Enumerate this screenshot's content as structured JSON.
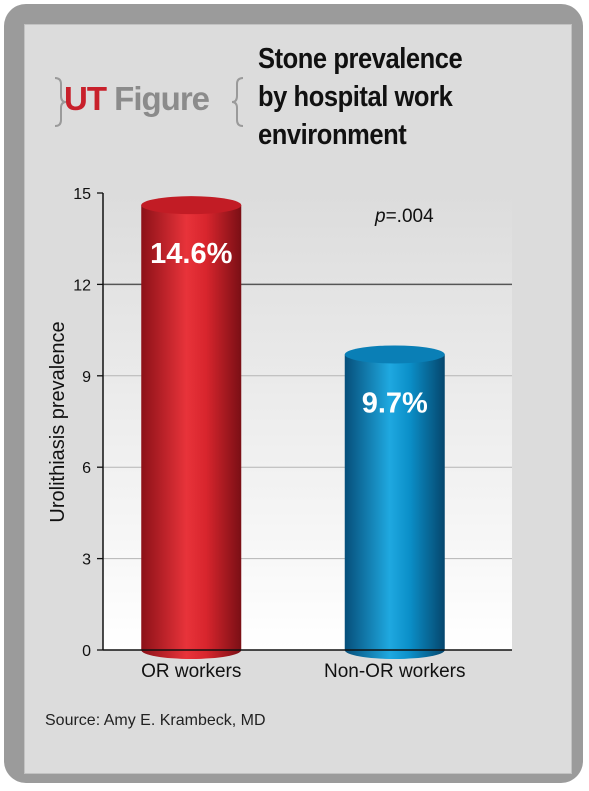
{
  "brand": {
    "prefix": "UT",
    "word": "Figure"
  },
  "title_lines": [
    "Stone prevalence",
    "by hospital work",
    "environment"
  ],
  "source": "Source: Amy E. Krambeck, MD",
  "colors": {
    "or_bar": "#c8202b",
    "non_or_bar": "#0b82b8",
    "brand_red": "#c8202b",
    "brand_gray": "#8b8b8b"
  },
  "chart_data": {
    "type": "bar",
    "title": "Stone prevalence by hospital work environment",
    "ylabel": "Urolithiasis prevalence",
    "xlabel": "",
    "ylim": [
      0,
      15
    ],
    "yticks": [
      0,
      3,
      6,
      9,
      12,
      15
    ],
    "categories": [
      "OR workers",
      "Non-OR workers"
    ],
    "values": [
      14.6,
      9.7
    ],
    "data_labels": [
      "14.6%",
      "9.7%"
    ],
    "annotation": {
      "prefix": "p",
      "text": "=.004"
    },
    "grid": true
  }
}
